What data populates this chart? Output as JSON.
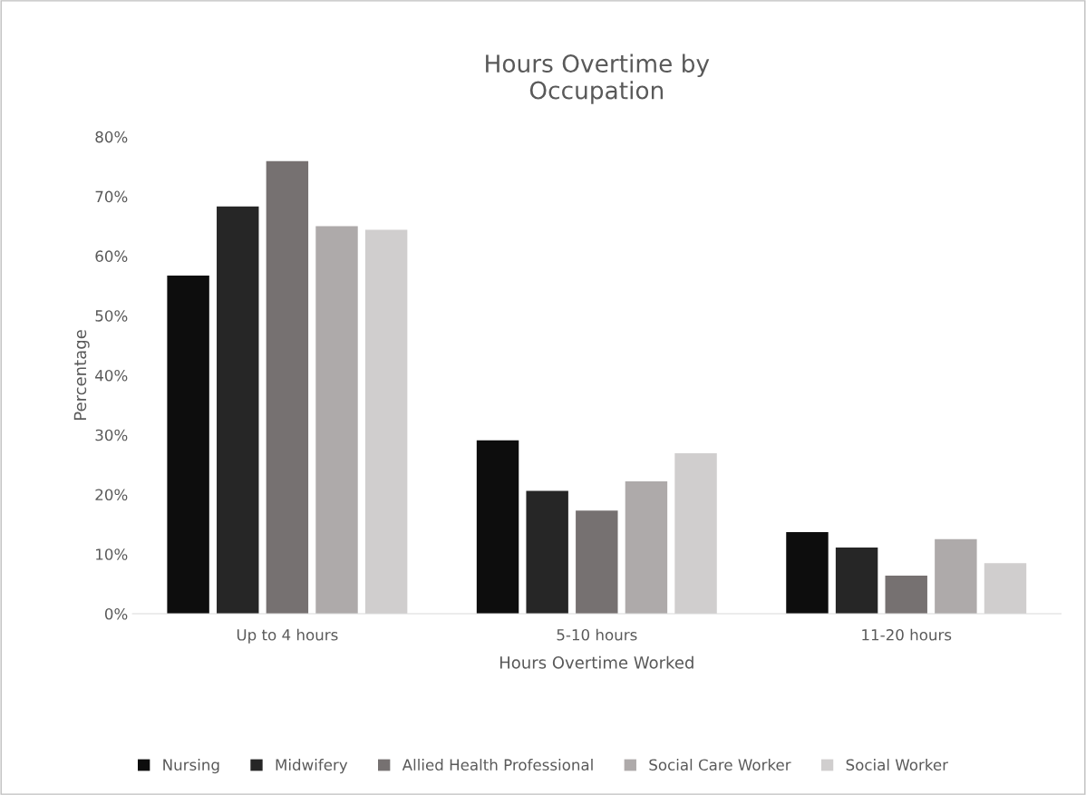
{
  "chart_data": {
    "type": "bar",
    "title": "Hours Overtime by\nOccupation",
    "xlabel": "Hours Overtime Worked",
    "ylabel": "Percentage",
    "categories": [
      "Up to 4 hours",
      "5-10 hours",
      "11-20 hours"
    ],
    "series": [
      {
        "name": "Nursing",
        "color": "#0d0d0d",
        "values": [
          56.7,
          29.1,
          13.7
        ]
      },
      {
        "name": "Midwifery",
        "color": "#262626",
        "values": [
          68.3,
          20.6,
          11.1
        ]
      },
      {
        "name": "Allied Health Professional",
        "color": "#767171",
        "values": [
          75.9,
          17.3,
          6.4
        ]
      },
      {
        "name": "Social Care Worker",
        "color": "#aeaaaa",
        "values": [
          65.0,
          22.2,
          12.5
        ]
      },
      {
        "name": "Social Worker",
        "color": "#d0cece",
        "values": [
          64.4,
          26.9,
          8.5
        ]
      }
    ],
    "ylim": [
      0,
      80
    ],
    "yticks": [
      {
        "value": 0,
        "label": "0%"
      },
      {
        "value": 10,
        "label": "10%"
      },
      {
        "value": 20,
        "label": "20%"
      },
      {
        "value": 30,
        "label": "30%"
      },
      {
        "value": 40,
        "label": "40%"
      },
      {
        "value": 50,
        "label": "50%"
      },
      {
        "value": 60,
        "label": "60%"
      },
      {
        "value": 70,
        "label": "70%"
      },
      {
        "value": 80,
        "label": "80%"
      }
    ],
    "grid": false,
    "legend": "bottom"
  }
}
